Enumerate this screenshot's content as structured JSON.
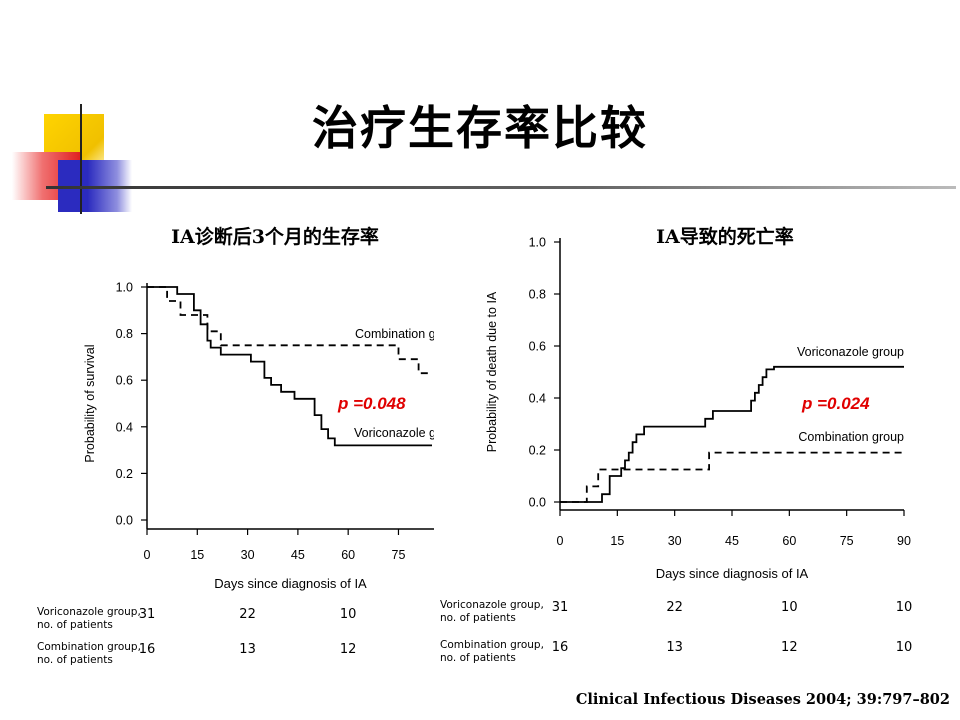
{
  "slide": {
    "title": "治疗生存率比较",
    "citation": "Clinical Infectious Diseases 2004; 39:797–802"
  },
  "colors": {
    "deco_yellow": "#f5c400",
    "deco_red": "#e8282c",
    "deco_blue": "#2b2bbf",
    "pvalue": "#e00000"
  },
  "chart_data": [
    {
      "type": "line",
      "step": true,
      "title": "IA诊断后3个月的生存率",
      "xlabel": "Days since diagnosis of IA",
      "ylabel": "Probability of survival",
      "xlim": [
        0,
        85
      ],
      "ylim": [
        0,
        1.0
      ],
      "xticks": [
        0,
        15,
        30,
        45,
        60,
        75
      ],
      "yticks": [
        "0.0",
        "0.2",
        "0.4",
        "0.6",
        "0.8",
        "1.0"
      ],
      "annotation": "p =0.048",
      "series": [
        {
          "name": "Combination g",
          "style": "dashed",
          "x": [
            0,
            6,
            6,
            10,
            10,
            18,
            18,
            22,
            22,
            39,
            39,
            75,
            75,
            81,
            81,
            85
          ],
          "y": [
            1.0,
            1.0,
            0.94,
            0.94,
            0.88,
            0.88,
            0.81,
            0.81,
            0.75,
            0.75,
            0.75,
            0.75,
            0.69,
            0.69,
            0.63,
            0.63
          ]
        },
        {
          "name": "Voriconazole g",
          "style": "solid",
          "x": [
            0,
            9,
            9,
            14,
            14,
            16,
            16,
            18,
            18,
            19,
            19,
            22,
            22,
            31,
            31,
            35,
            35,
            37,
            37,
            40,
            40,
            44,
            44,
            50,
            50,
            52,
            52,
            54,
            54,
            56,
            56,
            85
          ],
          "y": [
            1.0,
            1.0,
            0.97,
            0.97,
            0.9,
            0.9,
            0.84,
            0.84,
            0.77,
            0.77,
            0.74,
            0.74,
            0.71,
            0.71,
            0.68,
            0.68,
            0.61,
            0.61,
            0.58,
            0.58,
            0.55,
            0.55,
            0.52,
            0.52,
            0.45,
            0.45,
            0.39,
            0.39,
            0.35,
            0.35,
            0.32,
            0.32
          ]
        }
      ],
      "patients": {
        "ticks": [
          0,
          30,
          60
        ],
        "rows": [
          {
            "label": "Voriconazole group,\nno. of patients",
            "values": [
              "31",
              "22",
              "10"
            ]
          },
          {
            "label": "Combination group,\nno. of patients",
            "values": [
              "16",
              "13",
              "12"
            ]
          }
        ]
      }
    },
    {
      "type": "line",
      "step": true,
      "title": "IA导致的死亡率",
      "xlabel": "Days since diagnosis of IA",
      "ylabel": "Probability of death due to IA",
      "xlim": [
        0,
        90
      ],
      "ylim": [
        0,
        1.0
      ],
      "xticks": [
        0,
        15,
        30,
        45,
        60,
        75,
        90
      ],
      "yticks": [
        "0.0",
        "0.2",
        "0.4",
        "0.6",
        "0.8",
        "1.0"
      ],
      "annotation": "p =0.024",
      "series": [
        {
          "name": "Voriconazole group",
          "style": "solid",
          "x": [
            0,
            11,
            11,
            13,
            13,
            16,
            16,
            17,
            17,
            18,
            18,
            19,
            19,
            20,
            20,
            22,
            22,
            38,
            38,
            40,
            40,
            50,
            50,
            51,
            51,
            52,
            52,
            53,
            53,
            54,
            54,
            56,
            56,
            90
          ],
          "y": [
            0,
            0,
            0.03,
            0.03,
            0.1,
            0.1,
            0.13,
            0.13,
            0.16,
            0.16,
            0.19,
            0.19,
            0.23,
            0.23,
            0.26,
            0.26,
            0.29,
            0.29,
            0.32,
            0.32,
            0.35,
            0.35,
            0.39,
            0.39,
            0.42,
            0.42,
            0.45,
            0.45,
            0.48,
            0.48,
            0.51,
            0.51,
            0.52,
            0.52
          ]
        },
        {
          "name": "Combination group",
          "style": "dashed",
          "x": [
            0,
            7,
            7,
            10,
            10,
            39,
            39,
            90
          ],
          "y": [
            0,
            0,
            0.06,
            0.06,
            0.125,
            0.125,
            0.19,
            0.19
          ]
        }
      ],
      "patients": {
        "ticks": [
          0,
          30,
          60,
          90
        ],
        "rows": [
          {
            "label": "Voriconazole group,\nno. of patients",
            "values": [
              "31",
              "22",
              "10",
              "10"
            ]
          },
          {
            "label": "Combination group,\nno. of patients",
            "values": [
              "16",
              "13",
              "12",
              "10"
            ]
          }
        ]
      }
    }
  ]
}
